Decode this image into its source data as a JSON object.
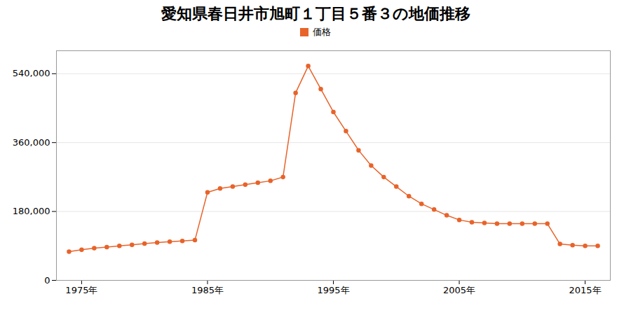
{
  "chart_data": {
    "type": "line",
    "title": "愛知県春日井市旭町１丁目５番３の地価推移",
    "x": [
      1974,
      1975,
      1976,
      1977,
      1978,
      1979,
      1980,
      1981,
      1982,
      1983,
      1984,
      1985,
      1986,
      1987,
      1988,
      1989,
      1990,
      1991,
      1992,
      1993,
      1994,
      1995,
      1996,
      1997,
      1998,
      1999,
      2000,
      2001,
      2002,
      2003,
      2004,
      2005,
      2006,
      2007,
      2008,
      2009,
      2010,
      2011,
      2012,
      2013,
      2014,
      2015,
      2016
    ],
    "series": [
      {
        "name": "価格",
        "color": "#e8632a",
        "marker": "circle",
        "values": [
          75000,
          80000,
          84000,
          87000,
          90000,
          93000,
          96000,
          99000,
          101000,
          103000,
          105000,
          230000,
          240000,
          245000,
          250000,
          255000,
          260000,
          270000,
          490000,
          560000,
          500000,
          440000,
          390000,
          340000,
          300000,
          270000,
          245000,
          220000,
          200000,
          185000,
          170000,
          158000,
          152000,
          150000,
          148000,
          148000,
          148000,
          148000,
          148000,
          95000,
          92000,
          90000,
          90000
        ]
      }
    ],
    "xlim": [
      1973,
      2017
    ],
    "xticks": [
      {
        "value": 1975,
        "label": "1975年"
      },
      {
        "value": 1985,
        "label": "1985年"
      },
      {
        "value": 1995,
        "label": "1995年"
      },
      {
        "value": 2005,
        "label": "2005年"
      },
      {
        "value": 2015,
        "label": "2015年"
      }
    ],
    "ylim": [
      0,
      600000
    ],
    "yticks": [
      0,
      {
        "value": 180000,
        "label": "180,000"
      },
      {
        "value": 360000,
        "label": "360,000"
      },
      {
        "value": 540000,
        "label": "540,000"
      }
    ],
    "grid": true,
    "legend": "top"
  }
}
